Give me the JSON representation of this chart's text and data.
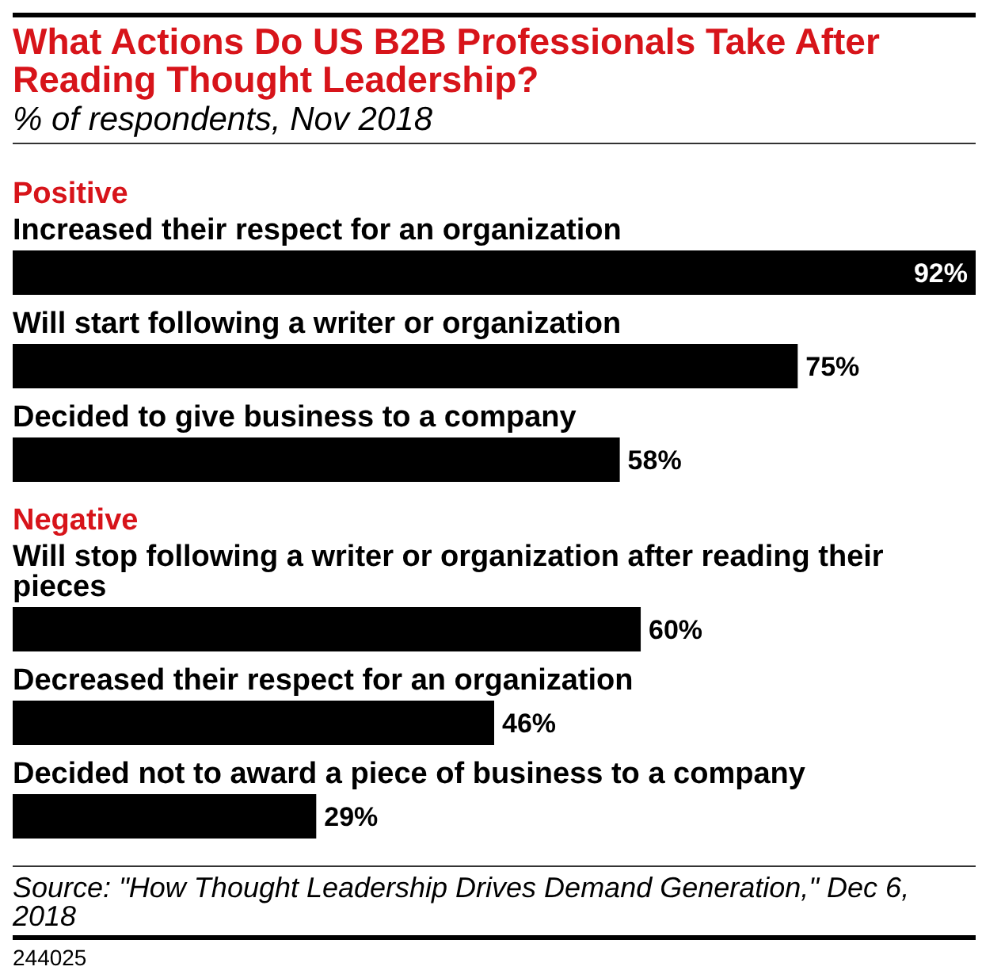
{
  "chart_data": {
    "type": "bar",
    "orientation": "horizontal",
    "title": "What Actions Do US B2B Professionals Take After Reading Thought Leadership?",
    "subtitle": "% of respondents, Nov 2018",
    "categories": [
      "Positive",
      "Increased their respect for an organization",
      "Will start following a writer or organization",
      "Decided to give business to a company",
      "Negative",
      "Will stop following a writer or organization after reading their pieces",
      "Decreased their respect for an organization",
      "Decided not to award a piece of business to a company"
    ],
    "values": [
      null,
      92,
      75,
      58,
      null,
      60,
      46,
      29
    ],
    "value_labels": [
      null,
      "92%",
      "75%",
      "58%",
      null,
      "60%",
      "46%",
      "29%"
    ],
    "color": "#000000",
    "xlim": [
      0,
      92
    ],
    "tick_labels": "y",
    "annotations": [
      "Source: \"How Thought Leadership Drives Demand Generation,\" Dec 6, 2018",
      "244025"
    ]
  }
}
